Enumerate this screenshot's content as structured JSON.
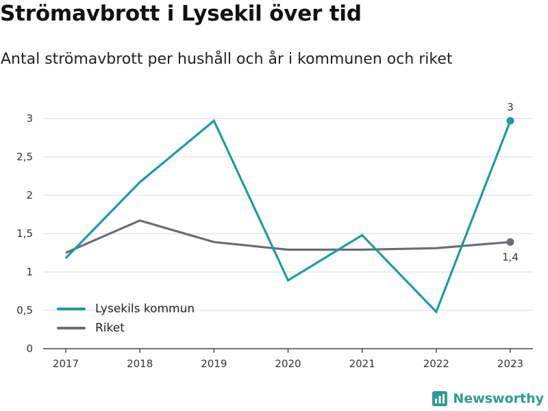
{
  "title": "Strömavbrott i Lysekil över tid",
  "subtitle": "Antal strömavbrott per hushåll och år i kommunen och riket",
  "brand": {
    "name": "Newsworthy",
    "icon": "newsworthy-logo-icon",
    "color": "#2a9d8f"
  },
  "chart_data": {
    "type": "line",
    "x": [
      "2017",
      "2018",
      "2019",
      "2020",
      "2021",
      "2022",
      "2023"
    ],
    "y_ticks": [
      "0",
      "0,5",
      "1",
      "1,5",
      "2",
      "2,5",
      "3"
    ],
    "ylim": [
      0,
      3
    ],
    "grid": true,
    "legend_position": "bottom-left",
    "series": [
      {
        "name": "Lysekils kommun",
        "color": "#1a9e96",
        "values": [
          1.18,
          2.17,
          2.97,
          0.89,
          1.48,
          0.48,
          2.97
        ],
        "end_label": "3"
      },
      {
        "name": "Riket",
        "color": "#6d6c72",
        "values": [
          1.25,
          1.67,
          1.39,
          1.29,
          1.29,
          1.31,
          1.39
        ],
        "end_label": "1,4"
      }
    ]
  }
}
